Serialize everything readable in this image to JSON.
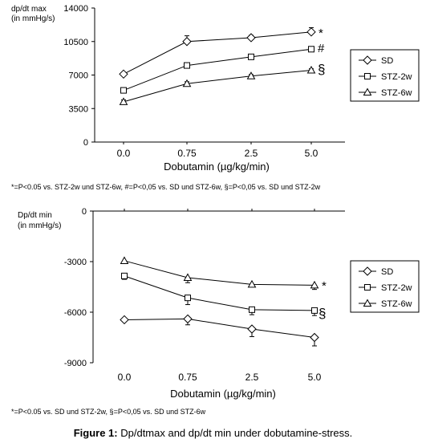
{
  "figure": {
    "caption_label": "Figure 1:",
    "caption_text": "Dp/dtmax and dp/dt min under dobutamine-stress."
  },
  "chart_data": [
    {
      "type": "line",
      "title": "",
      "ylabel_line1": "dp/dt max",
      "ylabel_line2": "(in mmHg/s)",
      "xlabel": "Dobutamin (µg/kg/min)",
      "categories": [
        "0.0",
        "0.75",
        "2.5",
        "5.0"
      ],
      "ylim": [
        0,
        14000
      ],
      "yticks": [
        0,
        3500,
        7000,
        10500,
        14000
      ],
      "grid": false,
      "legend_placement": "right",
      "series": [
        {
          "name": "SD",
          "marker": "diamond",
          "values": [
            7100,
            10500,
            10900,
            11500
          ],
          "errors": [
            0,
            600,
            250,
            450
          ]
        },
        {
          "name": "STZ-2w",
          "marker": "square",
          "values": [
            5400,
            8000,
            8900,
            9700
          ],
          "errors": [
            0,
            250,
            200,
            150
          ]
        },
        {
          "name": "STZ-6w",
          "marker": "triangle",
          "values": [
            4200,
            6100,
            6900,
            7500
          ],
          "errors": [
            200,
            200,
            150,
            150
          ]
        }
      ],
      "annotations": [
        "*",
        "#",
        "§"
      ],
      "footnote": "*=P<0.05 vs. STZ-2w und STZ-6w, #=P<0,05 vs. SD und STZ-6w, §=P<0,05 vs. SD und STZ-2w"
    },
    {
      "type": "line",
      "title": "",
      "ylabel_line1": "Dp/dt min",
      "ylabel_line2": "(in mmHg/s)",
      "xlabel": "Dobutamin (µg/kg/min)",
      "categories": [
        "0.0",
        "0.75",
        "2.5",
        "5.0"
      ],
      "ylim": [
        -9000,
        0
      ],
      "yticks": [
        0,
        -3000,
        -6000,
        -9000
      ],
      "grid": false,
      "legend_placement": "right",
      "series": [
        {
          "name": "SD",
          "marker": "diamond",
          "values": [
            -6450,
            -6400,
            -7000,
            -7500
          ],
          "errors": [
            0,
            350,
            450,
            500
          ]
        },
        {
          "name": "STZ-2w",
          "marker": "square",
          "values": [
            -3850,
            -5150,
            -5850,
            -5900
          ],
          "errors": [
            200,
            400,
            300,
            300
          ]
        },
        {
          "name": "STZ-6w",
          "marker": "triangle",
          "values": [
            -2950,
            -3950,
            -4350,
            -4400
          ],
          "errors": [
            150,
            300,
            150,
            250
          ]
        }
      ],
      "annotations": [
        "*",
        "§"
      ],
      "footnote": "*=P<0.05 vs. SD und STZ-2w,  §=P<0,05 vs. SD und STZ-6w"
    }
  ]
}
